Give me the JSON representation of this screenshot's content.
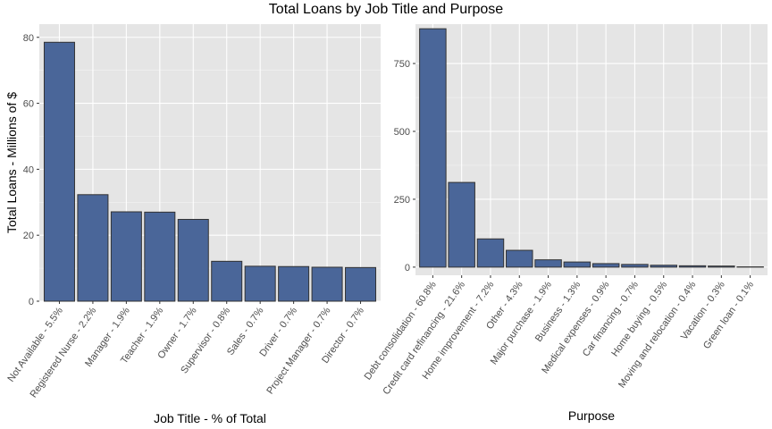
{
  "title": "Total Loans by Job Title and Purpose",
  "colors": {
    "panel_background": "#E5E5E5",
    "grid_major": "#FFFFFF",
    "bar_fill": "#4A6699",
    "bar_outline": "#333333",
    "tick_text": "#4D4D4D"
  },
  "chart_data": [
    {
      "type": "bar",
      "xlabel": "Job Title - % of Total",
      "ylabel": "Total Loans - Millions of $",
      "ylim": [
        0,
        84
      ],
      "yticks": [
        0,
        20,
        40,
        60,
        80
      ],
      "grid": true,
      "categories": [
        "Not Available - 5.5%",
        "Registered Nurse - 2.2%",
        "Manager - 1.9%",
        "Teacher - 1.9%",
        "Owner - 1.7%",
        "Supervisor - 0.8%",
        "Sales - 0.7%",
        "Driver - 0.7%",
        "Project Manager - 0.7%",
        "Director - 0.7%"
      ],
      "values": [
        78.5,
        32.3,
        27.1,
        27.0,
        24.8,
        12.1,
        10.6,
        10.5,
        10.3,
        10.2
      ]
    },
    {
      "type": "bar",
      "xlabel": "Purpose",
      "ylabel": "",
      "ylim": [
        -30,
        895
      ],
      "yticks": [
        0,
        250,
        500,
        750
      ],
      "grid": true,
      "categories": [
        "Debt consolidation - 60.8%",
        "Credit card refinancing - 21.6%",
        "Home improvement - 7.2%",
        "Other - 4.3%",
        "Major purchase - 1.9%",
        "Business - 1.3%",
        "Medical expenses - 0.9%",
        "Car financing - 0.7%",
        "Home buying - 0.5%",
        "Moving and relocation - 0.4%",
        "Vacation - 0.3%",
        "Green loan - 0.1%"
      ],
      "values": [
        878,
        312,
        104,
        62,
        27,
        19,
        13,
        10,
        7,
        5,
        4,
        1
      ]
    }
  ]
}
